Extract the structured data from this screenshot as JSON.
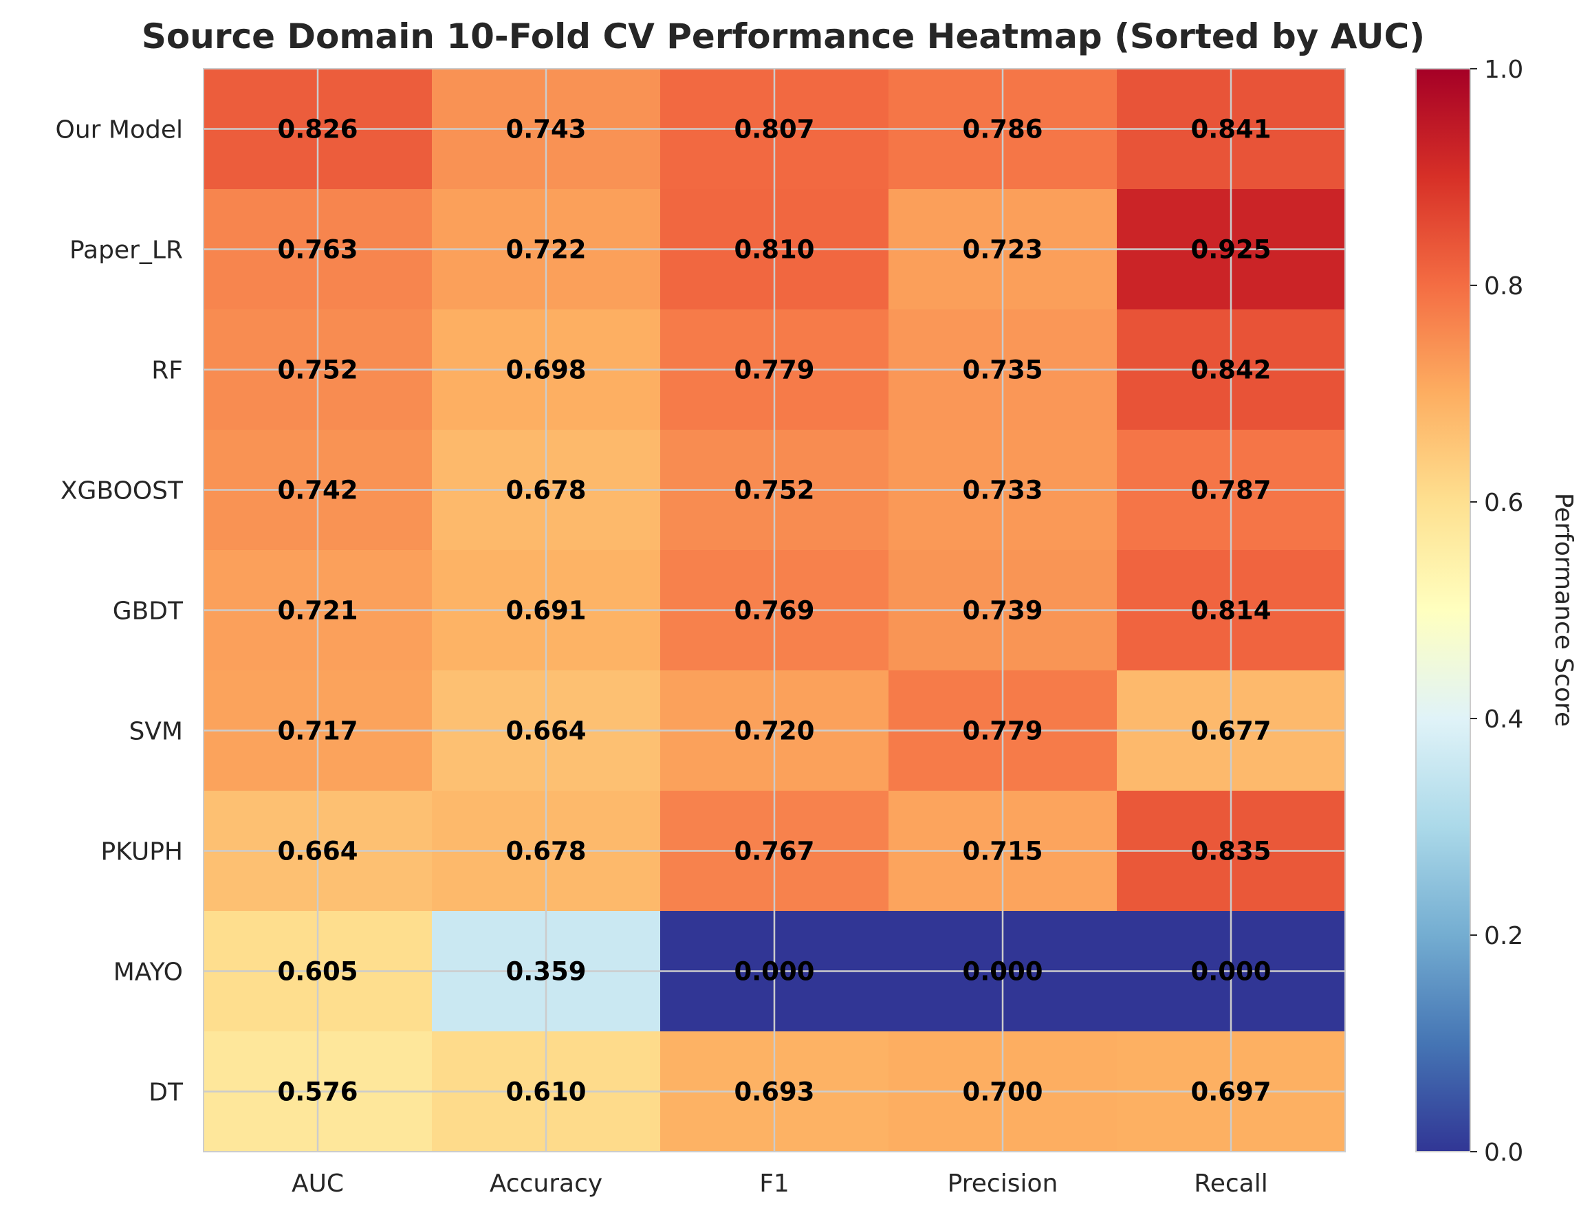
{
  "chart_data": {
    "type": "heatmap",
    "title": "Source Domain 10-Fold CV Performance Heatmap (Sorted by AUC)",
    "xlabel": "",
    "ylabel": "",
    "columns": [
      "AUC",
      "Accuracy",
      "F1",
      "Precision",
      "Recall"
    ],
    "rows": [
      "Our Model",
      "Paper_LR",
      "RF",
      "XGBOOST",
      "GBDT",
      "SVM",
      "PKUPH",
      "MAYO",
      "DT"
    ],
    "values": [
      [
        0.826,
        0.743,
        0.807,
        0.786,
        0.841
      ],
      [
        0.763,
        0.722,
        0.81,
        0.723,
        0.925
      ],
      [
        0.752,
        0.698,
        0.779,
        0.735,
        0.842
      ],
      [
        0.742,
        0.678,
        0.752,
        0.733,
        0.787
      ],
      [
        0.721,
        0.691,
        0.769,
        0.739,
        0.814
      ],
      [
        0.717,
        0.664,
        0.72,
        0.779,
        0.677
      ],
      [
        0.664,
        0.678,
        0.767,
        0.715,
        0.835
      ],
      [
        0.605,
        0.359,
        0.0,
        0.0,
        0.0
      ],
      [
        0.576,
        0.61,
        0.693,
        0.7,
        0.697
      ]
    ],
    "value_labels": [
      [
        "0.826",
        "0.743",
        "0.807",
        "0.786",
        "0.841"
      ],
      [
        "0.763",
        "0.722",
        "0.810",
        "0.723",
        "0.925"
      ],
      [
        "0.752",
        "0.698",
        "0.779",
        "0.735",
        "0.842"
      ],
      [
        "0.742",
        "0.678",
        "0.752",
        "0.733",
        "0.787"
      ],
      [
        "0.721",
        "0.691",
        "0.769",
        "0.739",
        "0.814"
      ],
      [
        "0.717",
        "0.664",
        "0.720",
        "0.779",
        "0.677"
      ],
      [
        "0.664",
        "0.678",
        "0.767",
        "0.715",
        "0.835"
      ],
      [
        "0.605",
        "0.359",
        "0.000",
        "0.000",
        "0.000"
      ],
      [
        "0.576",
        "0.610",
        "0.693",
        "0.700",
        "0.697"
      ]
    ],
    "colormap": "RdYlBu_r",
    "vmin": 0.0,
    "vmax": 1.0,
    "colorbar": {
      "label": "Performance Score",
      "ticks": [
        0.0,
        0.2,
        0.4,
        0.6,
        0.8,
        1.0
      ],
      "tick_labels": [
        "0.0",
        "0.2",
        "0.4",
        "0.6",
        "0.8",
        "1.0"
      ],
      "placement": "right"
    },
    "grid": true,
    "colors": {
      "text": "#262626",
      "grid": "#cccccc",
      "cell_text": "#000000"
    }
  }
}
